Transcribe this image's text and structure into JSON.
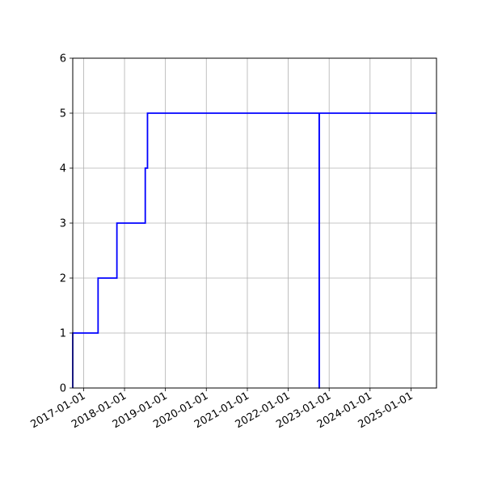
{
  "chart_data": {
    "type": "line",
    "title": "",
    "xlabel": "",
    "ylabel": "",
    "grid": true,
    "line_color": "#0000ff",
    "grid_color": "#b0b0b0",
    "x_ticks": [
      "2017-01-01",
      "2018-01-01",
      "2019-01-01",
      "2020-01-01",
      "2021-01-01",
      "2022-01-01",
      "2023-01-01",
      "2024-01-01",
      "2025-01-01"
    ],
    "y_ticks": [
      "0",
      "1",
      "2",
      "3",
      "4",
      "5",
      "6"
    ],
    "xlim": [
      "2016-09-26",
      "2025-08-16"
    ],
    "ylim": [
      0,
      6
    ],
    "series": [
      {
        "step": "post",
        "points": [
          {
            "x": "2016-09-26",
            "y": 0
          },
          {
            "x": "2016-09-26",
            "y": 1
          },
          {
            "x": "2017-05-10",
            "y": 2
          },
          {
            "x": "2017-10-25",
            "y": 3
          },
          {
            "x": "2018-07-05",
            "y": 4
          },
          {
            "x": "2018-07-25",
            "y": 5
          },
          {
            "x": "2022-10-04",
            "y": 0
          },
          {
            "x": "2022-10-05",
            "y": 5
          },
          {
            "x": "2025-08-16",
            "y": 5
          }
        ]
      }
    ]
  }
}
